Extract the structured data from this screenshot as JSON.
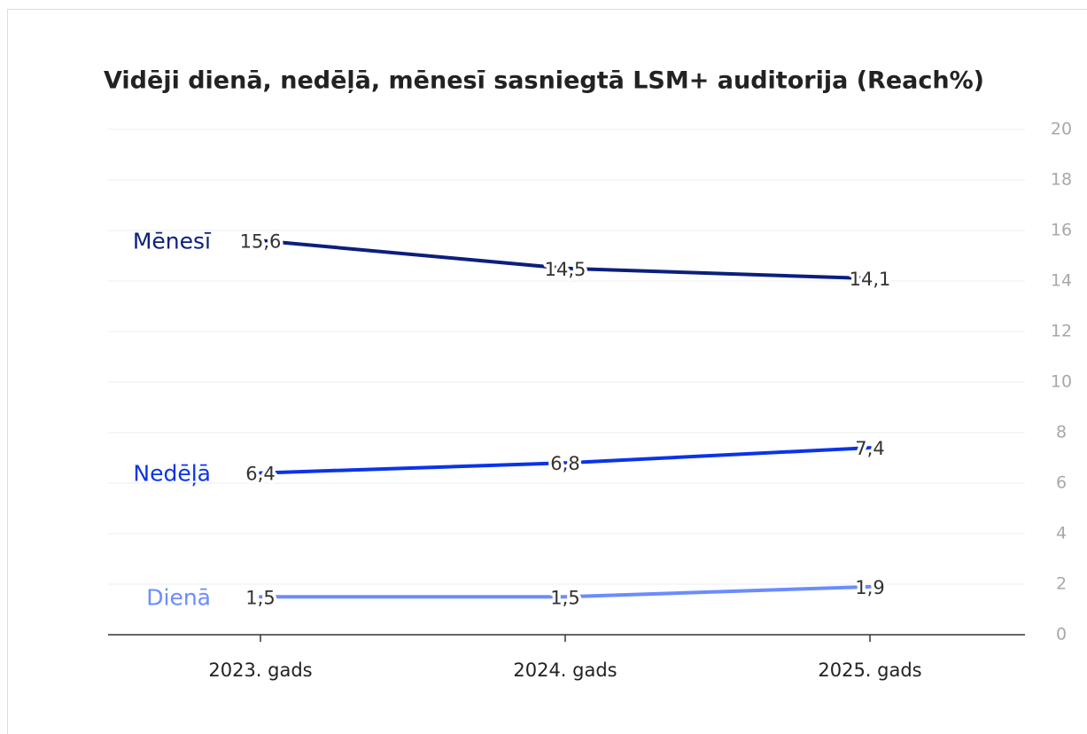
{
  "chart_data": {
    "type": "line",
    "title": "Vidēji dienā, nedēļā, mēnesī sasniegtā LSM+ auditorija (Reach%)",
    "categories": [
      "2023. gads",
      "2024. gads",
      "2025. gads"
    ],
    "series": [
      {
        "name": "Mēnesī",
        "color": "#0b1f7c",
        "values": [
          15.6,
          14.5,
          14.1
        ],
        "value_labels": [
          "15,6",
          "14,5",
          "14,1"
        ]
      },
      {
        "name": "Nedēļā",
        "color": "#0a34e8",
        "values": [
          6.4,
          6.8,
          7.4
        ],
        "value_labels": [
          "6,4",
          "6,8",
          "7,4"
        ]
      },
      {
        "name": "Dienā",
        "color": "#6b8cff",
        "values": [
          1.5,
          1.5,
          1.9
        ],
        "value_labels": [
          "1,5",
          "1,5",
          "1,9"
        ]
      }
    ],
    "ylim": [
      0,
      20
    ],
    "yticks": [
      0,
      2,
      4,
      6,
      8,
      10,
      12,
      14,
      16,
      18,
      20
    ],
    "grid": true
  }
}
